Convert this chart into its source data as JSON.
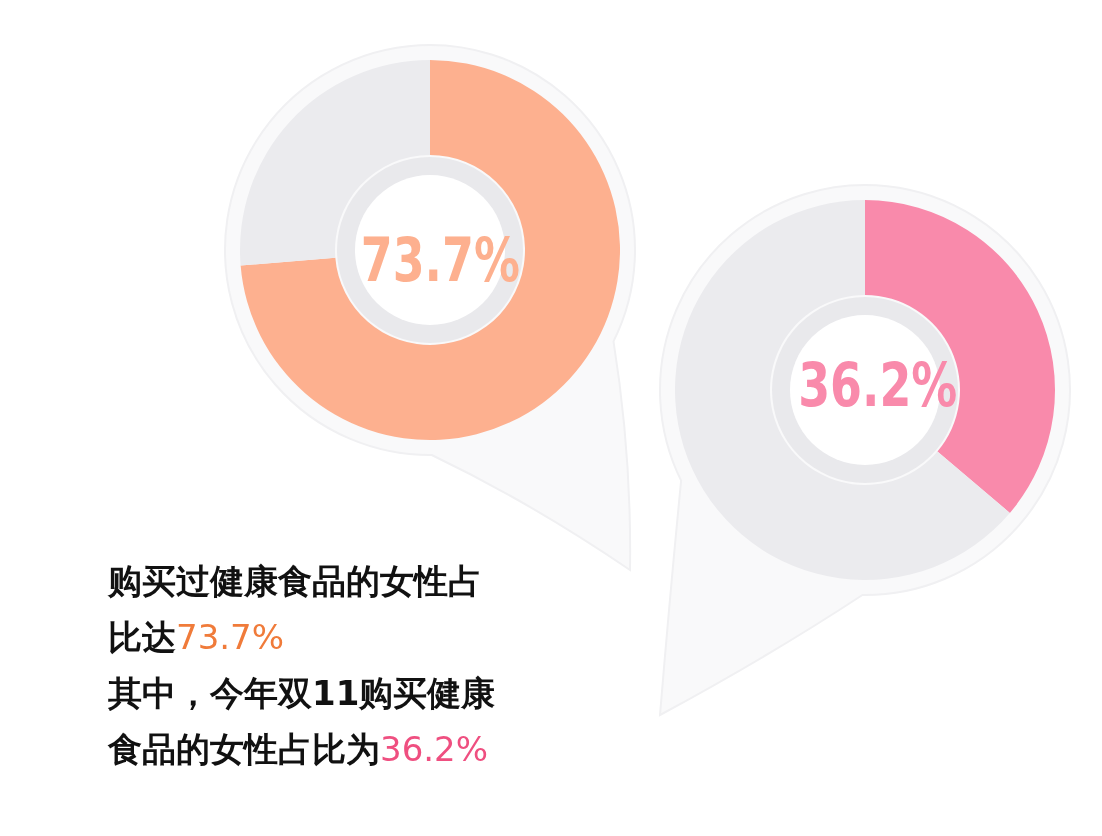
{
  "chart_data": [
    {
      "type": "donut",
      "categories": [
        null,
        null
      ],
      "values": [
        73.7,
        26.3
      ],
      "colors": [
        "#fdb08f",
        "#ebebee"
      ],
      "value_labels": [
        "73.7%",
        null
      ],
      "annotations": [
        "购买过健康食品的女性占比达73.7%"
      ]
    },
    {
      "type": "donut",
      "categories": [
        null,
        null
      ],
      "values": [
        36.2,
        63.8
      ],
      "colors": [
        "#f98aab",
        "#ebebee"
      ],
      "value_labels": [
        "36.2%",
        null
      ],
      "annotations": [
        "其中，今年双11购买健康食品的女性占比为36.2%"
      ]
    }
  ]
}
